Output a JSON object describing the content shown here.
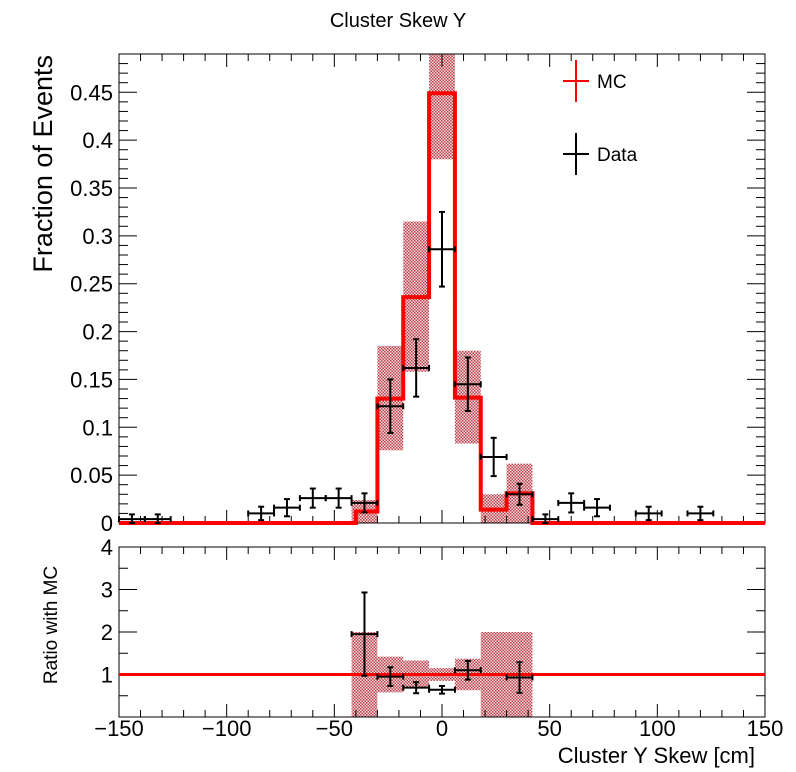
{
  "chart_data": [
    {
      "type": "histogram",
      "title": "Cluster Skew Y",
      "xlabel": "",
      "ylabel": "Fraction of Events",
      "xlim": [
        -150,
        150
      ],
      "ylim": [
        0,
        0.49
      ],
      "bin_width": 12,
      "x_tick_labels": [
        "-150",
        "-100",
        "-50",
        "0",
        "50",
        "100",
        "150"
      ],
      "y_tick_labels": [
        "0",
        "0.05",
        "0.1",
        "0.15",
        "0.2",
        "0.25",
        "0.3",
        "0.35",
        "0.4",
        "0.45"
      ],
      "legend": {
        "position": "top-right",
        "entries": [
          "MC",
          "Data"
        ]
      },
      "colors": {
        "mc": "#ff0000",
        "band": "#b0202a",
        "data": "#000000"
      },
      "series": [
        {
          "name": "MC",
          "style": "step",
          "bins": [
            {
              "x": -42,
              "value": 0.0
            },
            {
              "x": -40,
              "value": 0.012
            },
            {
              "x": -30,
              "value": 0.13
            },
            {
              "x": -18,
              "value": 0.236
            },
            {
              "x": -6,
              "value": 0.449
            },
            {
              "x": 6,
              "value": 0.131
            },
            {
              "x": 18,
              "value": 0.014
            },
            {
              "x": 30,
              "value": 0.031
            },
            {
              "x": 42,
              "value": 0.0
            }
          ],
          "uncertainty_band": [
            {
              "x0": -42,
              "x1": -30,
              "low": 0.0,
              "high": 0.024
            },
            {
              "x0": -30,
              "x1": -18,
              "low": 0.076,
              "high": 0.185
            },
            {
              "x0": -18,
              "x1": -6,
              "low": 0.158,
              "high": 0.315
            },
            {
              "x0": -6,
              "x1": 6,
              "low": 0.38,
              "high": 0.49
            },
            {
              "x0": 6,
              "x1": 18,
              "low": 0.083,
              "high": 0.18
            },
            {
              "x0": 18,
              "x1": 30,
              "low": 0.0,
              "high": 0.03
            },
            {
              "x0": 30,
              "x1": 42,
              "low": 0.0,
              "high": 0.062
            }
          ]
        },
        {
          "name": "Data",
          "style": "errorbar",
          "points": [
            {
              "x": -144,
              "y": 0.004,
              "yerr": 0.005
            },
            {
              "x": -132,
              "y": 0.004,
              "yerr": 0.005
            },
            {
              "x": -84,
              "y": 0.01,
              "yerr": 0.007
            },
            {
              "x": -72,
              "y": 0.016,
              "yerr": 0.009
            },
            {
              "x": -60,
              "y": 0.026,
              "yerr": 0.01
            },
            {
              "x": -48,
              "y": 0.026,
              "yerr": 0.01
            },
            {
              "x": -36,
              "y": 0.021,
              "yerr": 0.01
            },
            {
              "x": -24,
              "y": 0.122,
              "yerr": 0.028
            },
            {
              "x": -12,
              "y": 0.162,
              "yerr": 0.03
            },
            {
              "x": 0,
              "y": 0.286,
              "yerr": 0.039
            },
            {
              "x": 12,
              "y": 0.145,
              "yerr": 0.028
            },
            {
              "x": 24,
              "y": 0.069,
              "yerr": 0.02
            },
            {
              "x": 36,
              "y": 0.03,
              "yerr": 0.011
            },
            {
              "x": 48,
              "y": 0.004,
              "yerr": 0.005
            },
            {
              "x": 60,
              "y": 0.021,
              "yerr": 0.01
            },
            {
              "x": 72,
              "y": 0.016,
              "yerr": 0.009
            },
            {
              "x": 96,
              "y": 0.01,
              "yerr": 0.007
            },
            {
              "x": 120,
              "y": 0.01,
              "yerr": 0.007
            }
          ]
        }
      ]
    },
    {
      "type": "ratio",
      "title": "",
      "xlabel": "Cluster Y Skew [cm]",
      "ylabel": "Ratio with MC",
      "xlim": [
        -150,
        150
      ],
      "ylim": [
        0,
        4
      ],
      "x_tick_labels": [
        "−150",
        "−100",
        "−50",
        "0",
        "50",
        "100",
        "150"
      ],
      "y_tick_labels": [
        "1",
        "2",
        "3",
        "4"
      ],
      "reference_line": 1,
      "uncertainty_band": [
        {
          "x0": -42,
          "x1": -30,
          "low": 0.0,
          "high": 2.0
        },
        {
          "x0": -30,
          "x1": -18,
          "low": 0.58,
          "high": 1.42
        },
        {
          "x0": -18,
          "x1": -6,
          "low": 0.67,
          "high": 1.33
        },
        {
          "x0": -6,
          "x1": 6,
          "low": 0.85,
          "high": 1.15
        },
        {
          "x0": 6,
          "x1": 18,
          "low": 0.63,
          "high": 1.37
        },
        {
          "x0": 18,
          "x1": 30,
          "low": 0.0,
          "high": 2.0
        },
        {
          "x0": 30,
          "x1": 42,
          "low": 0.0,
          "high": 2.0
        }
      ],
      "points": [
        {
          "x": -36,
          "y": 1.95,
          "yerr": 0.98
        },
        {
          "x": -24,
          "y": 0.95,
          "yerr": 0.22
        },
        {
          "x": -12,
          "y": 0.69,
          "yerr": 0.13
        },
        {
          "x": 0,
          "y": 0.64,
          "yerr": 0.09
        },
        {
          "x": 12,
          "y": 1.1,
          "yerr": 0.22
        },
        {
          "x": 36,
          "y": 0.93,
          "yerr": 0.36
        }
      ]
    }
  ]
}
